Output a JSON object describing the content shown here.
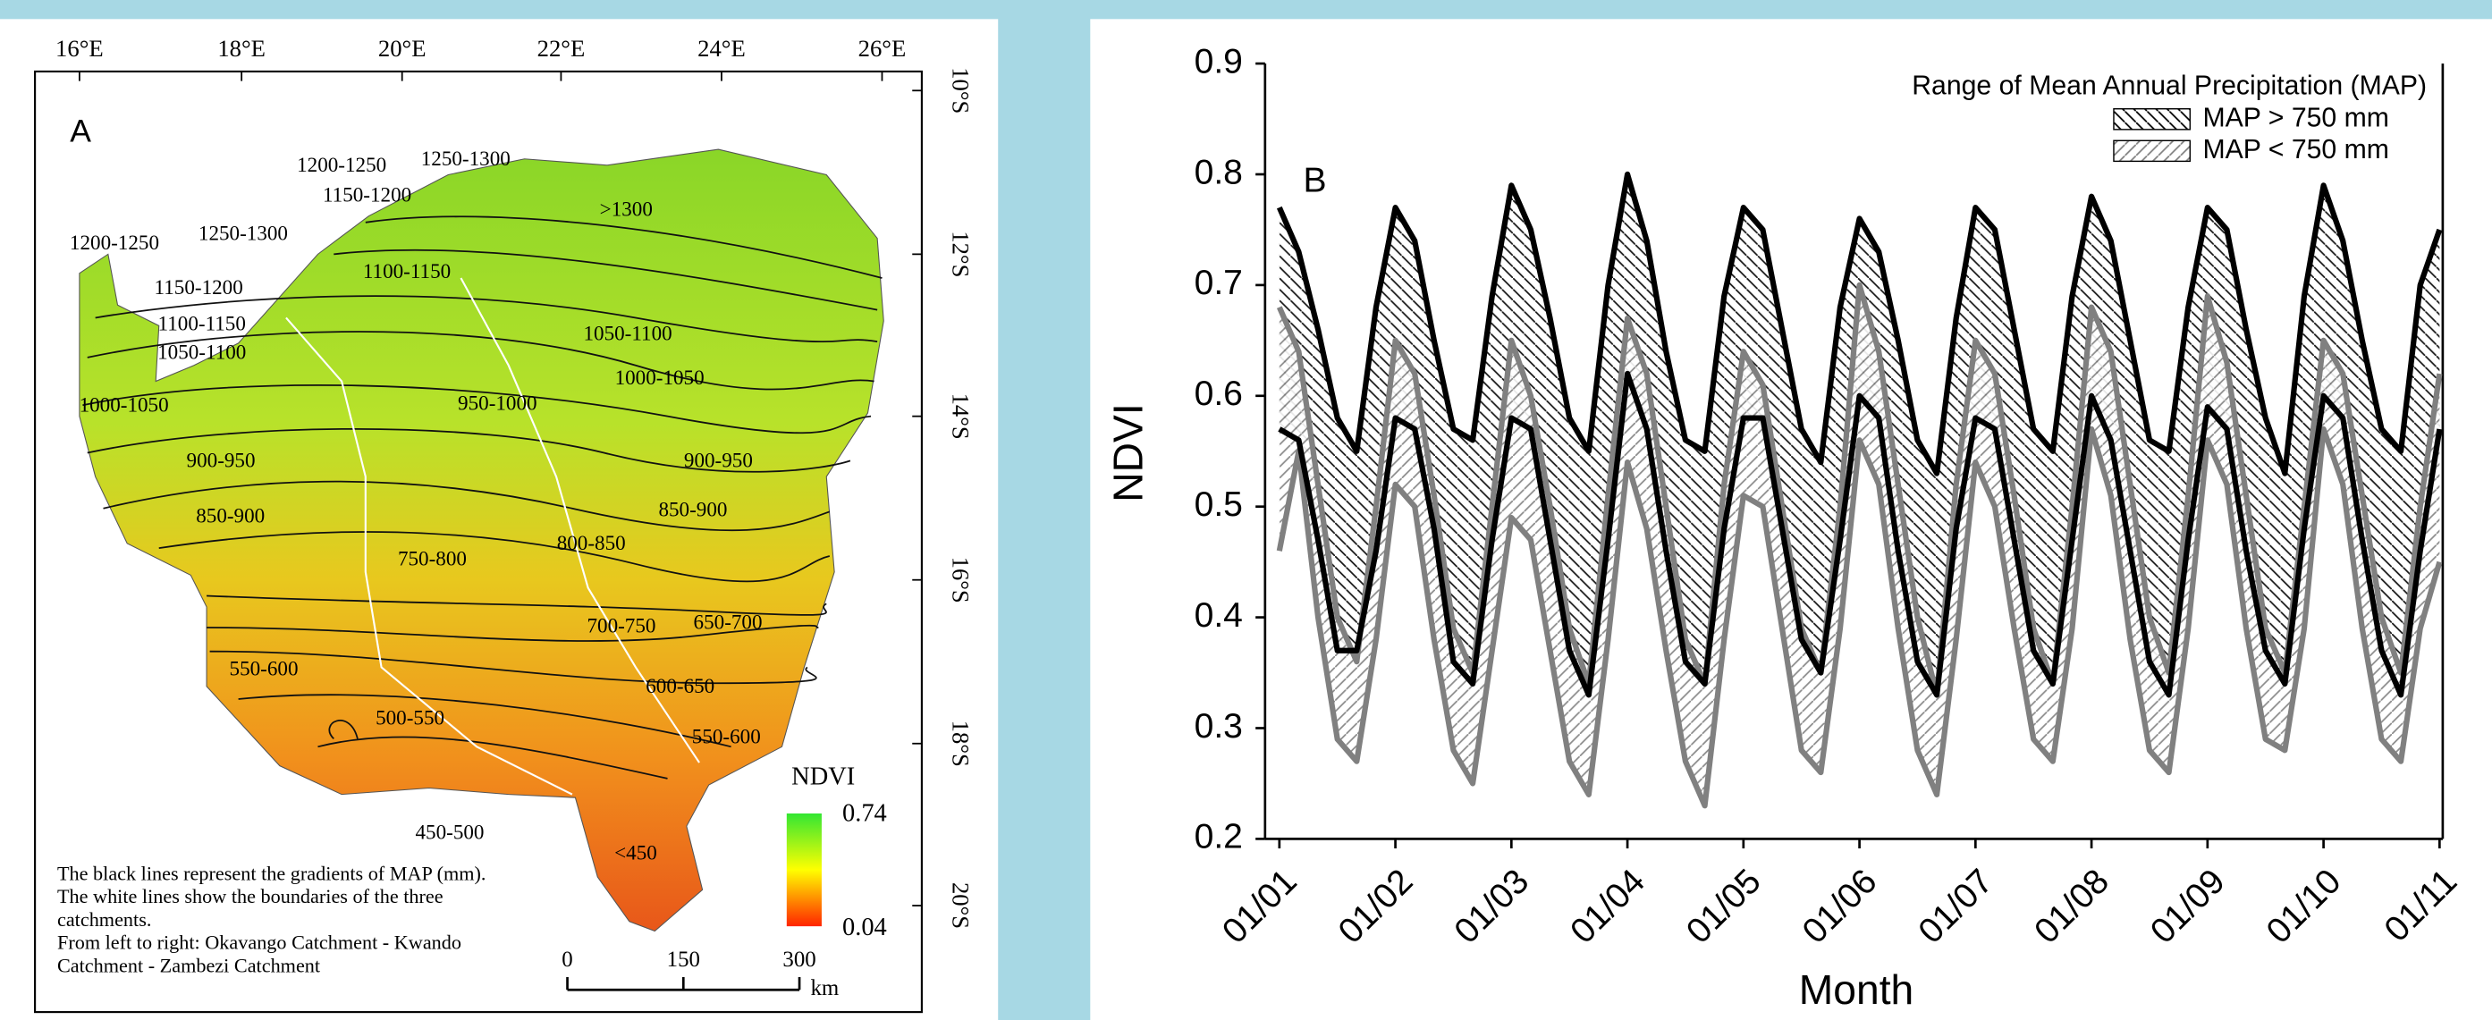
{
  "map": {
    "label": "A",
    "lon_ticks": [
      "16°E",
      "18°E",
      "20°E",
      "22°E",
      "24°E",
      "26°E"
    ],
    "lat_ticks": [
      "10°S",
      "12°S",
      "14°S",
      "16°S",
      "18°S",
      "20°S"
    ],
    "contour_labels": [
      "1200-1250",
      "1250-1300",
      "1150-1200",
      "1200-1250",
      "1250-1300",
      ">1300",
      "1150-1200",
      "1100-1150",
      "1100-1150",
      "1050-1100",
      "1050-1100",
      "1000-1050",
      "1000-1050",
      "950-1000",
      "900-950",
      "900-950",
      "850-900",
      "850-900",
      "800-850",
      "750-800",
      "700-750",
      "650-700",
      "550-600",
      "600-650",
      "500-550",
      "550-600",
      "450-500",
      "<450"
    ],
    "legend": {
      "title": "NDVI",
      "max": "0.74",
      "min": "0.04"
    },
    "note": [
      "The black lines represent the gradients of MAP (mm).",
      "The white lines show the boundaries of the three",
      "catchments.",
      "From left to right: Okavango Catchment - Kwando",
      "Catchment - Zambezi Catchment"
    ],
    "scale": {
      "ticks": [
        "0",
        "150",
        "300"
      ],
      "unit": "km"
    }
  },
  "chart_data": {
    "type": "band",
    "panel_label": "B",
    "x_label": "Month",
    "y_label": "NDVI",
    "legend_title": "Range of Mean Annual Precipitation (MAP)",
    "legend": "upper right",
    "categories": [
      "01/01",
      null,
      null,
      null,
      null,
      null,
      "01/02",
      null,
      null,
      null,
      null,
      null,
      "01/03",
      null,
      null,
      null,
      null,
      null,
      "01/04",
      null,
      null,
      null,
      null,
      null,
      "01/05",
      null,
      null,
      null,
      null,
      null,
      "01/06",
      null,
      null,
      null,
      null,
      null,
      "01/07",
      null,
      null,
      null,
      null,
      null,
      "01/08",
      null,
      null,
      null,
      null,
      null,
      "01/09",
      null,
      null,
      null,
      null,
      null,
      "01/10",
      null,
      null,
      null,
      null,
      null,
      "01/11"
    ],
    "ylim": [
      0.2,
      0.9
    ],
    "yticks": [
      0.2,
      0.3,
      0.4,
      0.5,
      0.6,
      0.7,
      0.8,
      0.9
    ],
    "series": [
      {
        "name": "MAP > 750 mm",
        "color": "#000000",
        "upper": [
          0.77,
          0.73,
          0.66,
          0.58,
          0.55,
          0.68,
          0.77,
          0.74,
          0.65,
          0.57,
          0.56,
          0.69,
          0.79,
          0.75,
          0.67,
          0.58,
          0.55,
          0.7,
          0.8,
          0.74,
          0.64,
          0.56,
          0.55,
          0.69,
          0.77,
          0.75,
          0.66,
          0.57,
          0.54,
          0.68,
          0.76,
          0.73,
          0.65,
          0.56,
          0.53,
          0.67,
          0.77,
          0.75,
          0.66,
          0.57,
          0.55,
          0.69,
          0.78,
          0.74,
          0.65,
          0.56,
          0.55,
          0.68,
          0.77,
          0.75,
          0.66,
          0.58,
          0.53,
          0.69,
          0.79,
          0.74,
          0.65,
          0.57,
          0.55,
          0.7,
          0.75
        ],
        "lower": [
          0.57,
          0.56,
          0.47,
          0.37,
          0.37,
          0.46,
          0.58,
          0.57,
          0.48,
          0.36,
          0.34,
          0.47,
          0.58,
          0.57,
          0.47,
          0.37,
          0.33,
          0.47,
          0.62,
          0.57,
          0.46,
          0.36,
          0.34,
          0.48,
          0.58,
          0.58,
          0.48,
          0.38,
          0.35,
          0.47,
          0.6,
          0.58,
          0.46,
          0.36,
          0.33,
          0.48,
          0.58,
          0.57,
          0.47,
          0.37,
          0.34,
          0.47,
          0.6,
          0.56,
          0.46,
          0.36,
          0.33,
          0.47,
          0.59,
          0.57,
          0.46,
          0.37,
          0.34,
          0.48,
          0.6,
          0.58,
          0.47,
          0.37,
          0.33,
          0.46,
          0.57
        ]
      },
      {
        "name": "MAP < 750 mm",
        "color": "#808080",
        "upper": [
          0.68,
          0.64,
          0.52,
          0.4,
          0.36,
          0.5,
          0.65,
          0.62,
          0.51,
          0.39,
          0.35,
          0.5,
          0.65,
          0.6,
          0.5,
          0.39,
          0.34,
          0.51,
          0.67,
          0.62,
          0.5,
          0.38,
          0.34,
          0.52,
          0.64,
          0.61,
          0.5,
          0.39,
          0.35,
          0.5,
          0.7,
          0.64,
          0.52,
          0.4,
          0.33,
          0.52,
          0.65,
          0.62,
          0.51,
          0.39,
          0.34,
          0.5,
          0.68,
          0.64,
          0.52,
          0.4,
          0.35,
          0.51,
          0.69,
          0.63,
          0.51,
          0.39,
          0.35,
          0.5,
          0.65,
          0.62,
          0.51,
          0.4,
          0.35,
          0.5,
          0.62
        ],
        "lower": [
          0.46,
          0.55,
          0.4,
          0.29,
          0.27,
          0.38,
          0.52,
          0.5,
          0.38,
          0.28,
          0.25,
          0.37,
          0.49,
          0.47,
          0.37,
          0.27,
          0.24,
          0.38,
          0.54,
          0.48,
          0.37,
          0.27,
          0.23,
          0.38,
          0.51,
          0.5,
          0.39,
          0.28,
          0.26,
          0.39,
          0.56,
          0.52,
          0.39,
          0.28,
          0.24,
          0.38,
          0.54,
          0.5,
          0.39,
          0.29,
          0.27,
          0.39,
          0.57,
          0.51,
          0.38,
          0.28,
          0.26,
          0.39,
          0.56,
          0.52,
          0.39,
          0.29,
          0.28,
          0.39,
          0.57,
          0.52,
          0.39,
          0.29,
          0.27,
          0.39,
          0.45
        ]
      }
    ]
  }
}
